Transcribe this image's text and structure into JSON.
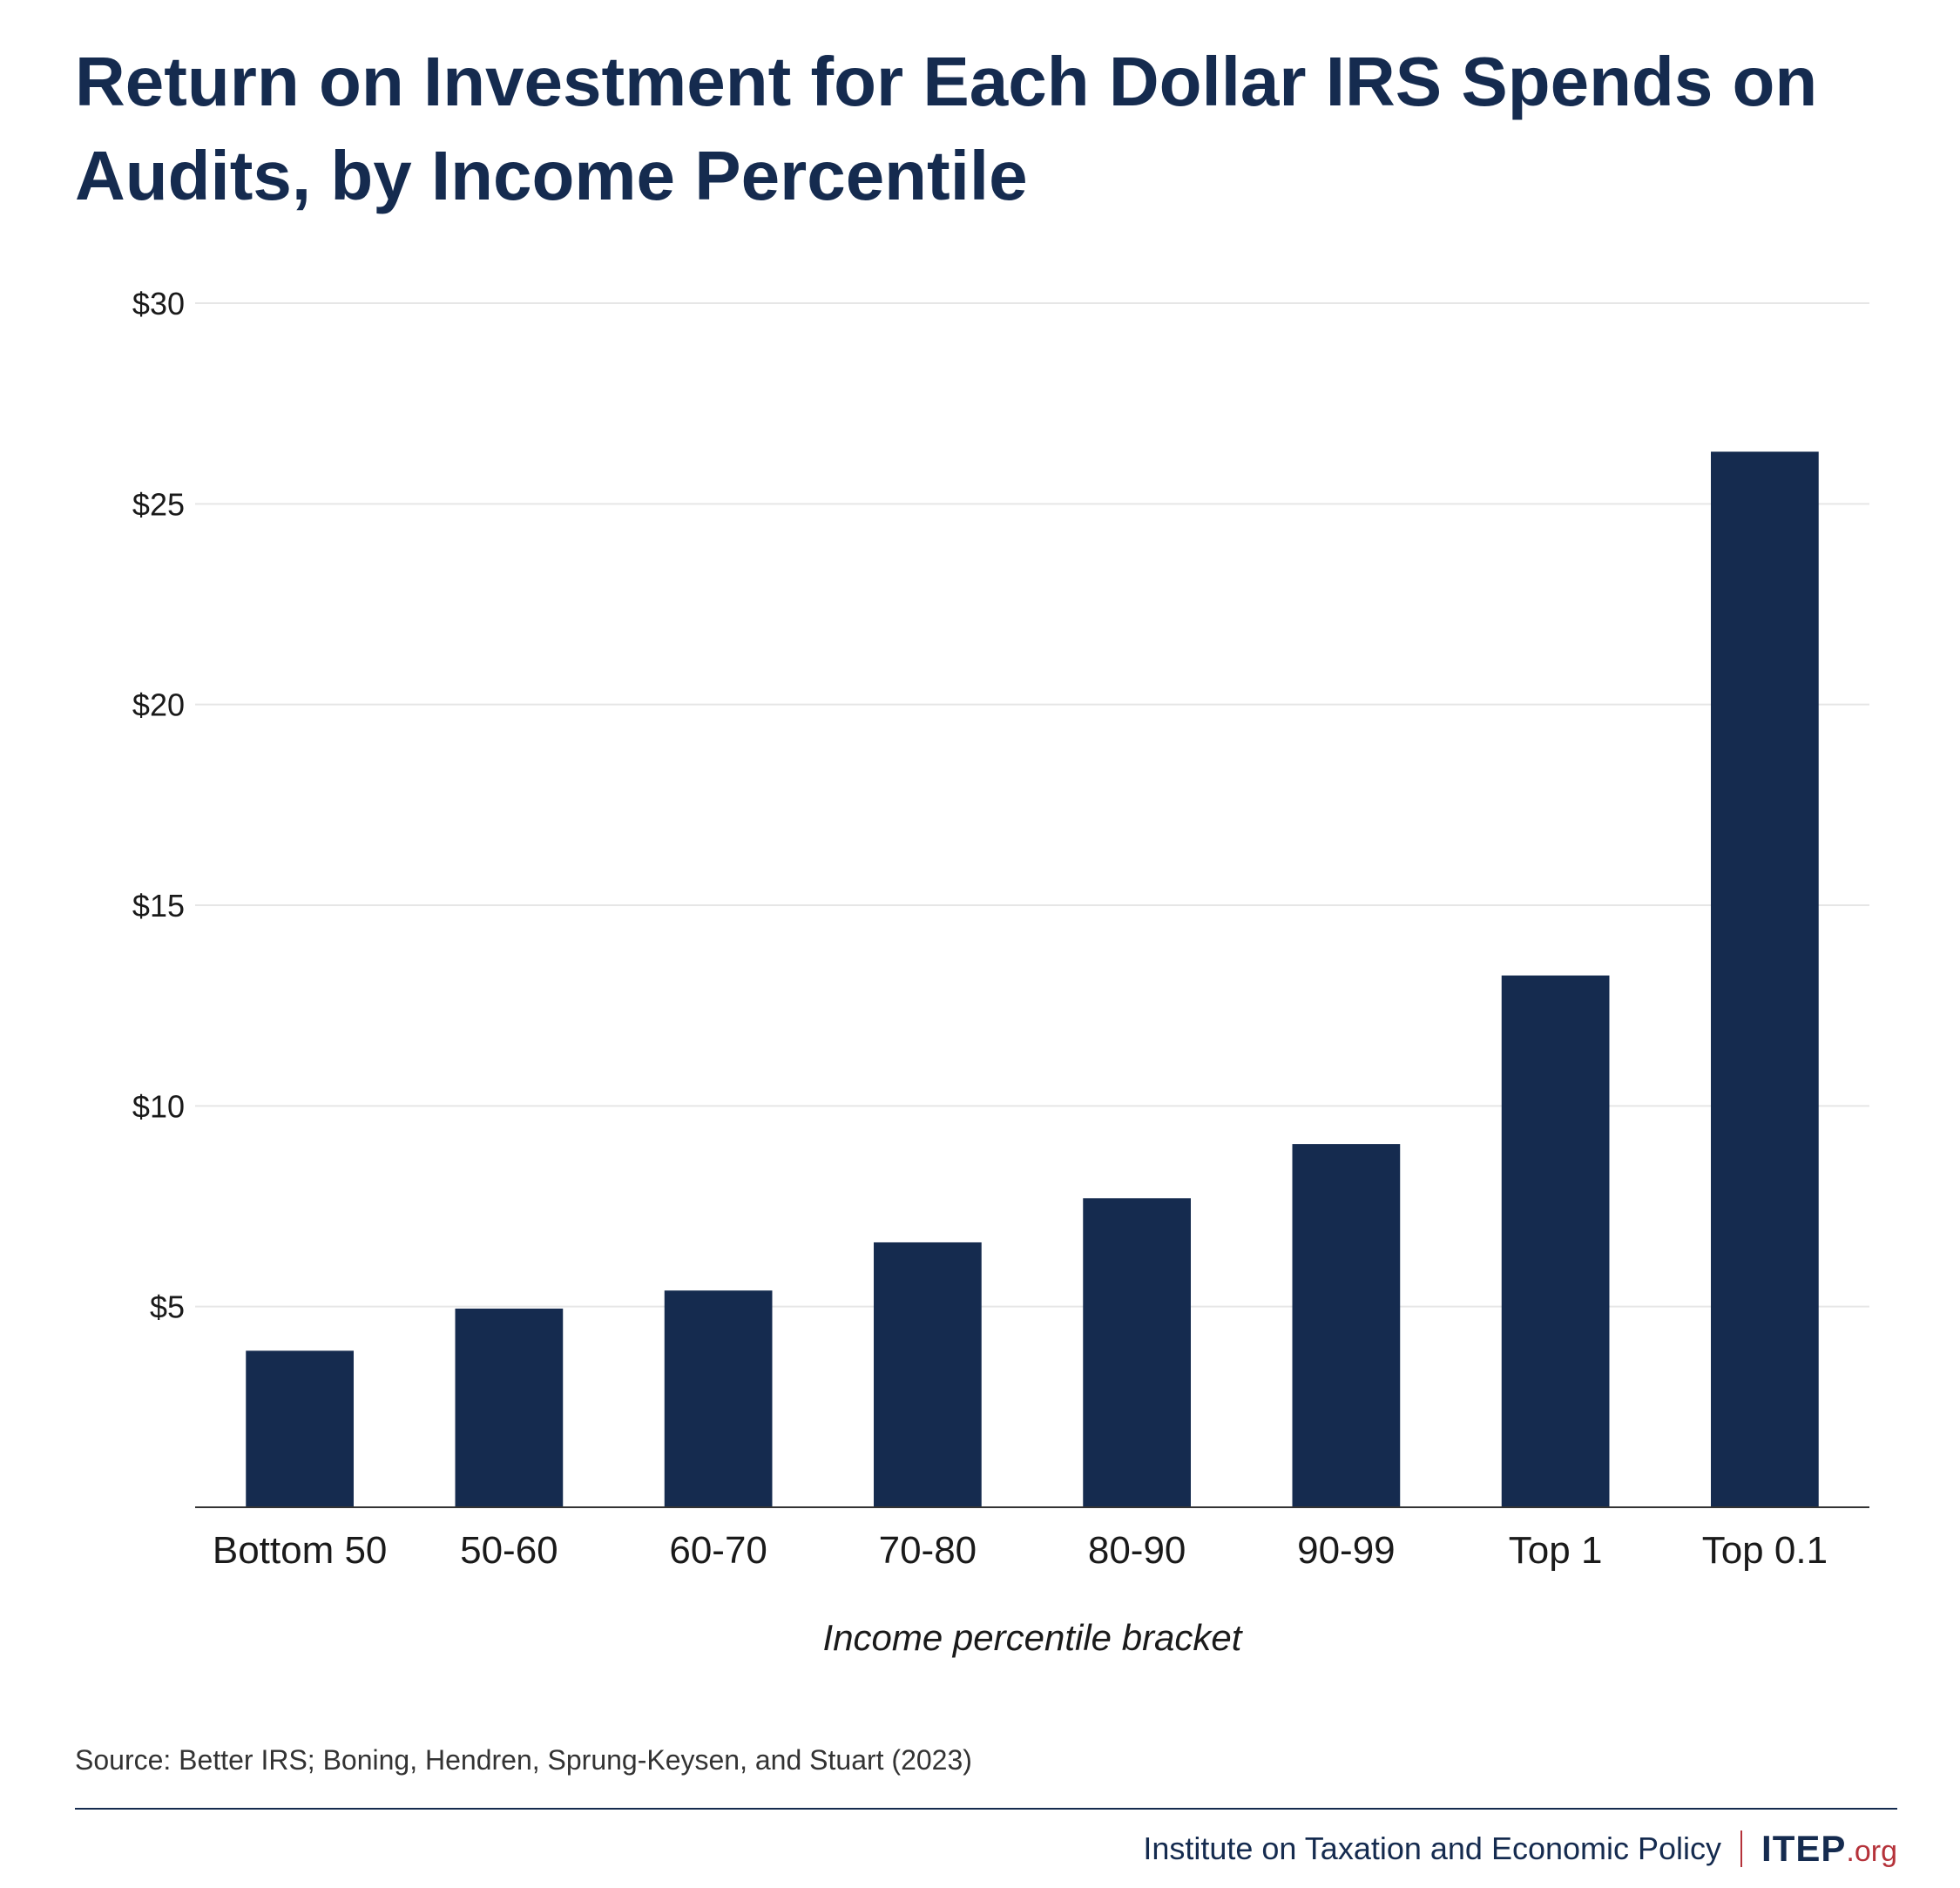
{
  "title": "Return on Investment for Each Dollar IRS Spends on Audits, by Income Percentile",
  "source": "Source: Better IRS; Boning, Hendren, Sprung-Keysen, and Stuart (2023)",
  "footer": {
    "organization": "Institute on Taxation and Economic Policy",
    "logo_main": "ITEP",
    "logo_suffix": ".org"
  },
  "colors": {
    "bar": "#152b4f",
    "title": "#152b4f",
    "accent": "#b5323a",
    "grid": "#e6e6e6"
  },
  "chart_data": {
    "type": "bar",
    "title": "Return on Investment for Each Dollar IRS Spends on Audits, by Income Percentile",
    "xlabel": "Income percentile bracket",
    "ylabel": "",
    "categories": [
      "Bottom 50",
      "50-60",
      "60-70",
      "70-80",
      "80-90",
      "90-99",
      "Top 1",
      "Top 0.1"
    ],
    "values": [
      3.9,
      4.95,
      5.4,
      6.6,
      7.7,
      9.05,
      13.25,
      26.3
    ],
    "ylim": [
      0,
      30
    ],
    "yticks": [
      5,
      10,
      15,
      20,
      25,
      30
    ],
    "ytick_labels": [
      "$5",
      "$10",
      "$15",
      "$20",
      "$25",
      "$30"
    ],
    "grid": true,
    "legend": "none"
  }
}
